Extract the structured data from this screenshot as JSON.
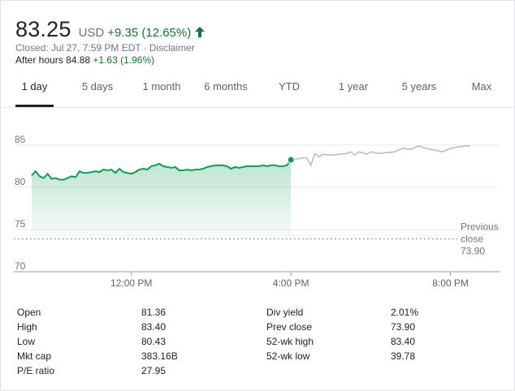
{
  "quote": {
    "price": "83.25",
    "currency": "USD",
    "change": "+9.35 (12.65%)",
    "closed_text": "Closed: Jul 27, 7:59 PM EDT",
    "separator": "·",
    "disclaimer": "Disclaimer",
    "after_hours_label": "After hours 84.88",
    "after_hours_change": "+1.63 (1.96%)",
    "colors": {
      "positive": "#137333",
      "line": "#0f9d58",
      "after_hours_line": "#bdbdbd"
    }
  },
  "tabs": [
    {
      "label": "1 day",
      "active": true
    },
    {
      "label": "5 days",
      "active": false
    },
    {
      "label": "1 month",
      "active": false
    },
    {
      "label": "6 months",
      "active": false
    },
    {
      "label": "YTD",
      "active": false
    },
    {
      "label": "1 year",
      "active": false
    },
    {
      "label": "5 years",
      "active": false
    },
    {
      "label": "Max",
      "active": false
    }
  ],
  "chart_data": {
    "type": "line",
    "ylim": [
      70,
      87
    ],
    "xlim": [
      9.5,
      20.6
    ],
    "yticks": [
      "85",
      "80",
      "75",
      "70"
    ],
    "xticks": [
      {
        "t": 12,
        "label": "12:00 PM"
      },
      {
        "t": 16,
        "label": "4:00 PM"
      },
      {
        "t": 20,
        "label": "8:00 PM"
      }
    ],
    "prev_close": 73.9,
    "prev_close_label": [
      "Previous",
      "close",
      "73.90"
    ],
    "series": [
      {
        "session": "regular",
        "x": [
          9.5,
          9.6,
          9.7,
          9.8,
          9.9,
          10.0,
          10.1,
          10.2,
          10.3,
          10.4,
          10.5,
          10.6,
          10.7,
          10.8,
          10.9,
          11.0,
          11.1,
          11.2,
          11.3,
          11.4,
          11.5,
          11.6,
          11.7,
          11.8,
          11.9,
          12.0,
          12.1,
          12.2,
          12.3,
          12.4,
          12.5,
          12.6,
          12.7,
          12.8,
          12.9,
          13.0,
          13.1,
          13.2,
          13.3,
          13.4,
          13.5,
          13.6,
          13.7,
          13.8,
          13.9,
          14.0,
          14.1,
          14.2,
          14.3,
          14.4,
          14.5,
          14.6,
          14.7,
          14.8,
          14.9,
          15.0,
          15.1,
          15.2,
          15.3,
          15.4,
          15.5,
          15.6,
          15.7,
          15.8,
          15.9,
          16.0
        ],
        "y": [
          81.4,
          81.9,
          81.3,
          81.1,
          81.6,
          81.0,
          81.1,
          80.9,
          80.9,
          81.1,
          81.3,
          81.2,
          81.9,
          81.7,
          81.7,
          81.8,
          81.9,
          81.8,
          82.1,
          82.0,
          82.1,
          81.7,
          82.2,
          81.8,
          81.7,
          81.6,
          81.8,
          82.1,
          82.2,
          82.1,
          82.5,
          82.6,
          82.8,
          82.5,
          82.4,
          82.3,
          82.4,
          82.0,
          82.0,
          82.1,
          82.0,
          82.1,
          82.1,
          82.2,
          82.4,
          82.5,
          82.6,
          82.6,
          82.6,
          82.5,
          82.2,
          82.4,
          82.3,
          82.4,
          82.5,
          82.5,
          82.5,
          82.5,
          82.6,
          82.5,
          82.6,
          82.6,
          82.5,
          82.5,
          82.6,
          83.25
        ]
      },
      {
        "session": "after-hours",
        "x": [
          16.0,
          16.2,
          16.4,
          16.5,
          16.6,
          16.7,
          16.8,
          17.0,
          17.2,
          17.4,
          17.5,
          17.6,
          17.7,
          17.8,
          17.9,
          18.0,
          18.2,
          18.4,
          18.6,
          18.8,
          19.0,
          19.2,
          19.4,
          19.6,
          19.8,
          20.0,
          20.2,
          20.4,
          20.5
        ],
        "y": [
          83.25,
          83.4,
          83.5,
          82.6,
          84.0,
          83.6,
          83.9,
          83.8,
          83.9,
          84.0,
          84.2,
          83.8,
          84.2,
          84.1,
          83.9,
          84.2,
          84.0,
          84.1,
          84.2,
          84.6,
          84.5,
          84.9,
          84.6,
          84.4,
          84.2,
          84.6,
          84.8,
          84.9,
          84.88
        ]
      }
    ]
  },
  "stats": {
    "left": [
      {
        "label": "Open",
        "value": "81.36"
      },
      {
        "label": "High",
        "value": "83.40"
      },
      {
        "label": "Low",
        "value": "80.43"
      },
      {
        "label": "Mkt cap",
        "value": "383.16B"
      },
      {
        "label": "P/E ratio",
        "value": "27.95"
      }
    ],
    "right": [
      {
        "label": "Div yield",
        "value": "2.01%"
      },
      {
        "label": "Prev close",
        "value": "73.90"
      },
      {
        "label": "52-wk high",
        "value": "83.40"
      },
      {
        "label": "52-wk low",
        "value": "39.78"
      }
    ]
  }
}
